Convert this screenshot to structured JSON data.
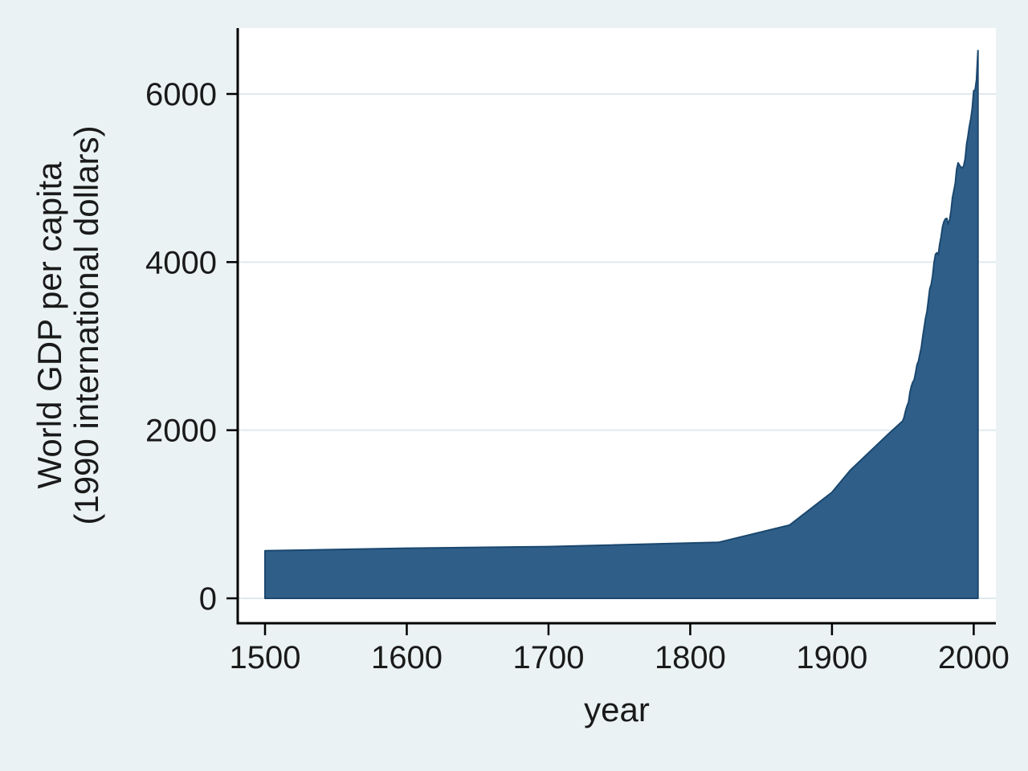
{
  "chart_data": {
    "type": "area",
    "title": "",
    "xlabel": "year",
    "ylabel": "World GDP per capita (1990 international dollars)",
    "ylabel_lines": [
      "World GDP per capita",
      "(1990 international dollars)"
    ],
    "series_name": "World GDP per capita",
    "x": [
      1500,
      1600,
      1700,
      1820,
      1870,
      1900,
      1913,
      1940,
      1950,
      1951,
      1952,
      1953,
      1954,
      1955,
      1956,
      1957,
      1958,
      1959,
      1960,
      1961,
      1962,
      1963,
      1964,
      1965,
      1966,
      1967,
      1968,
      1969,
      1970,
      1971,
      1972,
      1973,
      1974,
      1975,
      1976,
      1977,
      1978,
      1979,
      1980,
      1981,
      1982,
      1983,
      1984,
      1985,
      1986,
      1987,
      1988,
      1989,
      1990,
      1991,
      1992,
      1993,
      1994,
      1995,
      1996,
      1997,
      1998,
      1999,
      2000,
      2001,
      2002,
      2003
    ],
    "values": [
      566,
      596,
      615,
      666,
      870,
      1261,
      1526,
      1958,
      2111,
      2160,
      2235,
      2290,
      2330,
      2450,
      2520,
      2570,
      2600,
      2680,
      2777,
      2820,
      2900,
      2980,
      3110,
      3216,
      3330,
      3410,
      3540,
      3680,
      3736,
      3830,
      3990,
      4091,
      4110,
      4088,
      4210,
      4300,
      4420,
      4480,
      4512,
      4520,
      4450,
      4500,
      4610,
      4763,
      4850,
      4940,
      5105,
      5180,
      5150,
      5130,
      5120,
      5145,
      5230,
      5404,
      5500,
      5620,
      5709,
      5830,
      6038,
      6049,
      6170,
      6516
    ],
    "x_ticks": [
      1500,
      1600,
      1700,
      1800,
      1900,
      2000
    ],
    "y_ticks": [
      0,
      2000,
      4000,
      6000
    ],
    "xlim": [
      1481,
      2016
    ],
    "ylim": [
      -300,
      6790
    ],
    "grid": true,
    "legend": "none"
  },
  "colors": {
    "page_bg": "#eaf2f3",
    "plot_bg": "#ffffff",
    "area_fill": "#2f5f88",
    "area_stroke": "#1a476f",
    "grid": "#dfe9ec",
    "axis": "#000000",
    "text": "#1a1a1a"
  }
}
